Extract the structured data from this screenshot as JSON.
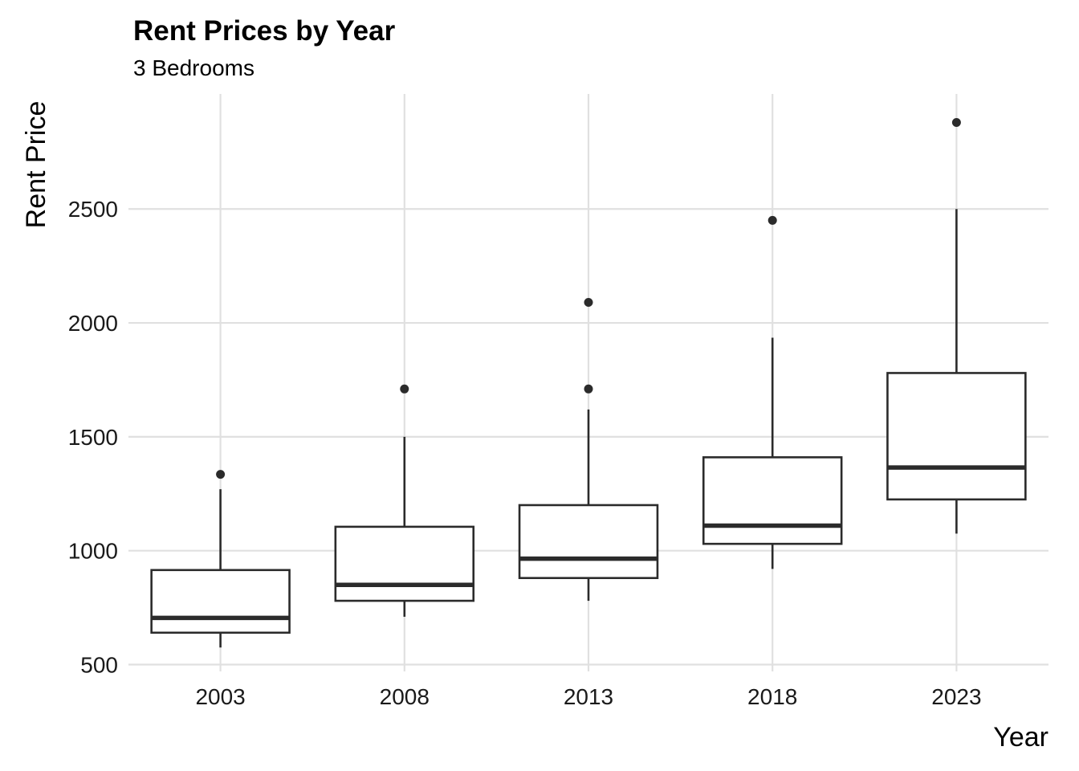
{
  "chart_data": {
    "type": "boxplot",
    "title": "Rent Prices by Year",
    "subtitle": "3 Bedrooms",
    "xlabel": "Year",
    "ylabel": "Rent Price",
    "categories": [
      "2003",
      "2008",
      "2013",
      "2018",
      "2023"
    ],
    "y_ticks": [
      500,
      1000,
      1500,
      2000,
      2500
    ],
    "y_tick_labels": [
      "500",
      "1000",
      "1500",
      "2000",
      "2500"
    ],
    "ylim": [
      470,
      3005
    ],
    "grid": true,
    "boxes": [
      {
        "category": "2003",
        "whisker_low": 575,
        "q1": 640,
        "median": 705,
        "q3": 915,
        "whisker_high": 1270,
        "outliers": [
          1335
        ]
      },
      {
        "category": "2008",
        "whisker_low": 710,
        "q1": 780,
        "median": 850,
        "q3": 1105,
        "whisker_high": 1500,
        "outliers": [
          1710
        ]
      },
      {
        "category": "2013",
        "whisker_low": 780,
        "q1": 880,
        "median": 965,
        "q3": 1200,
        "whisker_high": 1620,
        "outliers": [
          1710,
          2090
        ]
      },
      {
        "category": "2018",
        "whisker_low": 920,
        "q1": 1030,
        "median": 1110,
        "q3": 1410,
        "whisker_high": 1935,
        "outliers": [
          2450
        ]
      },
      {
        "category": "2023",
        "whisker_low": 1075,
        "q1": 1225,
        "median": 1365,
        "q3": 1780,
        "whisker_high": 2500,
        "outliers": [
          2880
        ]
      }
    ],
    "colors": {
      "box_stroke": "#2b2b2b",
      "grid": "#e0e0e0",
      "background": "#ffffff"
    }
  }
}
